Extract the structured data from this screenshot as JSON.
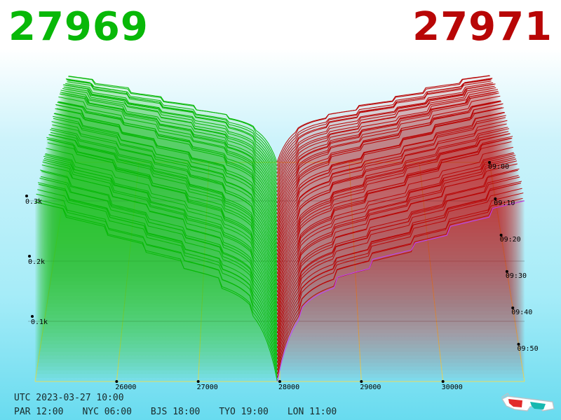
{
  "bid_price": "27969",
  "ask_price": "27971",
  "utc_label": "UTC 2023-03-27 10:00",
  "timezones": [
    "PAR 12:00",
    "NYC 06:00",
    "BJS 18:00",
    "TYO 19:00",
    "LON 11:00"
  ],
  "icon": "3d-glasses-icon",
  "colors": {
    "bid": "#08b808",
    "ask": "#b80606",
    "latest_ask": "#c040ff",
    "grid": "#e8e060"
  },
  "chart_data": {
    "type": "area",
    "title": "",
    "x_tick_labels": [
      "26000",
      "27000",
      "28000",
      "29000",
      "30000"
    ],
    "y_tick_labels": [
      "0.1k",
      "0.2k",
      "0.3k"
    ],
    "time_tick_labels": [
      "09:00",
      "09:10",
      "09:20",
      "09:30",
      "09:40",
      "09:50"
    ],
    "x_range": [
      25000,
      31000
    ],
    "time_range": [
      "09:00",
      "10:00"
    ],
    "depth_range": [
      0,
      350
    ],
    "snapshots": 60,
    "mid_price": 27970,
    "grid": true
  }
}
